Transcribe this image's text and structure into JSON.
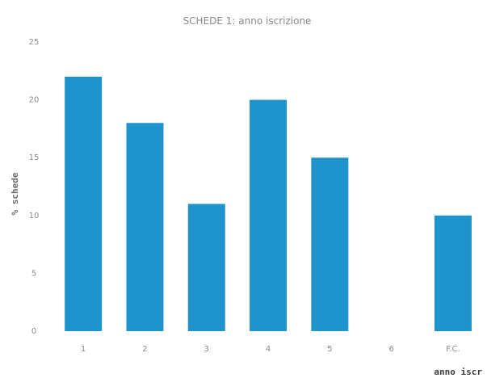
{
  "chart_data": {
    "type": "bar",
    "title": "SCHEDE 1: anno iscrizione",
    "xlabel": "anno iscr",
    "ylabel": "% schede",
    "categories": [
      "1",
      "2",
      "3",
      "4",
      "5",
      "6",
      "F.C."
    ],
    "values": [
      22,
      18,
      11,
      20,
      15,
      0,
      10
    ],
    "ylim": [
      0,
      25
    ],
    "yticks": [
      0,
      5,
      10,
      15,
      20,
      25
    ],
    "grid": false,
    "bar_color": "#1f93cc"
  }
}
